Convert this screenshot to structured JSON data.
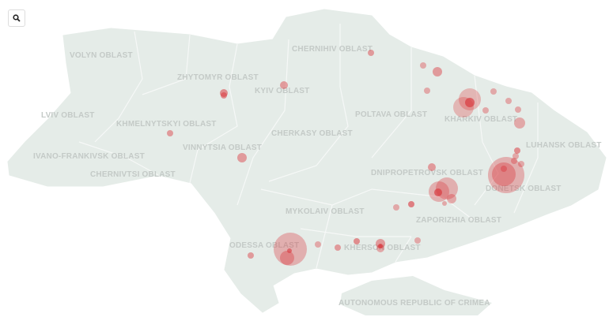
{
  "controls": {
    "zoom_icon": "search-icon"
  },
  "colors": {
    "land": "#e5ece8",
    "border": "#f6f8f7",
    "marker": "#d9373d"
  },
  "regions": [
    {
      "name": "VOLYN OBLAST"
    },
    {
      "name": "ZHYTOMYR OBLAST"
    },
    {
      "name": "KYIV OBLAST"
    },
    {
      "name": "CHERNIHIV OBLAST"
    },
    {
      "name": "LVIV OBLAST"
    },
    {
      "name": "KHMELNYTSKYI OBLAST"
    },
    {
      "name": "POLTAVA OBLAST"
    },
    {
      "name": "KHARKIV OBLAST"
    },
    {
      "name": "CHERKASY OBLAST"
    },
    {
      "name": "LUHANSK OBLAST"
    },
    {
      "name": "IVANO-FRANKIVSK OBLAST"
    },
    {
      "name": "VINNYTSIA OBLAST"
    },
    {
      "name": "CHERNIVTSI OBLAST"
    },
    {
      "name": "DNIPROPETROVSK OBLAST"
    },
    {
      "name": "DONETSK OBLAST"
    },
    {
      "name": "MYKOLAIV OBLAST"
    },
    {
      "name": "ZAPORIZHIA OBLAST"
    },
    {
      "name": "ODESSA OBLAST"
    },
    {
      "name": "KHERSON OBLAST"
    },
    {
      "name": "AUTONOMOUS REPUBLIC OF CRIMEA"
    }
  ]
}
